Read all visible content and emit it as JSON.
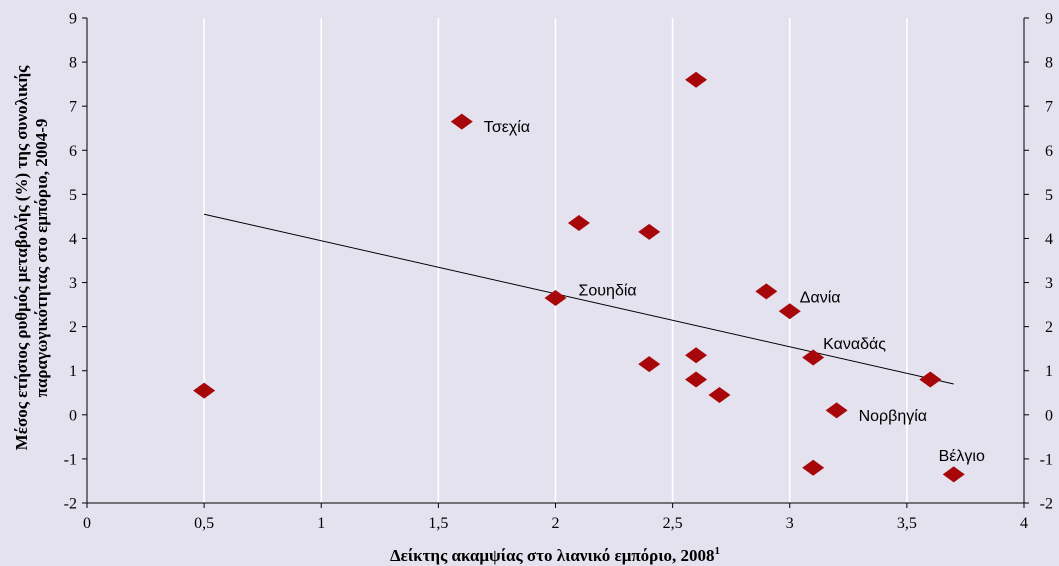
{
  "chart_data": {
    "type": "scatter",
    "xlabel": "Δείκτης ακαμψίας στο λιανικό εμπόριο, 2008",
    "xlabel_footnote": "1",
    "ylabel": [
      "Μέσος ετήσιος ρυθμός μεταβολής (%) της συνολικής",
      "παραγωγικότητας στο εμπόριο, 2004-9"
    ],
    "xlim": [
      0,
      4
    ],
    "ylim": [
      -2,
      9
    ],
    "x_ticks": [
      0,
      0.5,
      1,
      1.5,
      2,
      2.5,
      3,
      3.5,
      4
    ],
    "x_tick_labels": [
      "0",
      "0,5",
      "1",
      "1,5",
      "2",
      "2,5",
      "3",
      "3,5",
      "4"
    ],
    "y_ticks": [
      -2,
      -1,
      0,
      1,
      2,
      3,
      4,
      5,
      6,
      7,
      8,
      9
    ],
    "y_tick_labels": [
      "-2",
      "-1",
      "0",
      "1",
      "2",
      "3",
      "4",
      "5",
      "6",
      "7",
      "8",
      "9"
    ],
    "y_axis_mirrored": true,
    "grid": {
      "vertical": true,
      "horizontal": false
    },
    "points": [
      {
        "x": 0.5,
        "y": 0.55
      },
      {
        "x": 1.6,
        "y": 6.65,
        "label": "Τσεχία",
        "label_position": "right"
      },
      {
        "x": 2.0,
        "y": 2.65,
        "label": "Σουηδία",
        "label_position": "upper-right"
      },
      {
        "x": 2.1,
        "y": 4.35
      },
      {
        "x": 2.4,
        "y": 4.15
      },
      {
        "x": 2.4,
        "y": 1.15
      },
      {
        "x": 2.6,
        "y": 7.6
      },
      {
        "x": 2.6,
        "y": 1.35
      },
      {
        "x": 2.6,
        "y": 0.8
      },
      {
        "x": 2.7,
        "y": 0.45
      },
      {
        "x": 2.9,
        "y": 2.8
      },
      {
        "x": 3.0,
        "y": 2.35,
        "label": "Δανία",
        "label_position": "above-right"
      },
      {
        "x": 3.1,
        "y": 1.3,
        "label": "Καναδάς",
        "label_position": "above-right"
      },
      {
        "x": 3.1,
        "y": -1.2
      },
      {
        "x": 3.2,
        "y": 0.1,
        "label": "Νορβηγία",
        "label_position": "right"
      },
      {
        "x": 3.6,
        "y": 0.8
      },
      {
        "x": 3.7,
        "y": -1.35,
        "label": "Βέλγιο",
        "label_position": "above"
      }
    ],
    "trendline": {
      "x": [
        0.5,
        3.7
      ],
      "y": [
        4.55,
        0.7
      ]
    },
    "colors": {
      "background": "#e4e2ef",
      "grid": "#ffffff",
      "marker": "#a8070a",
      "axis": "#000000",
      "trendline": "#000000"
    }
  }
}
